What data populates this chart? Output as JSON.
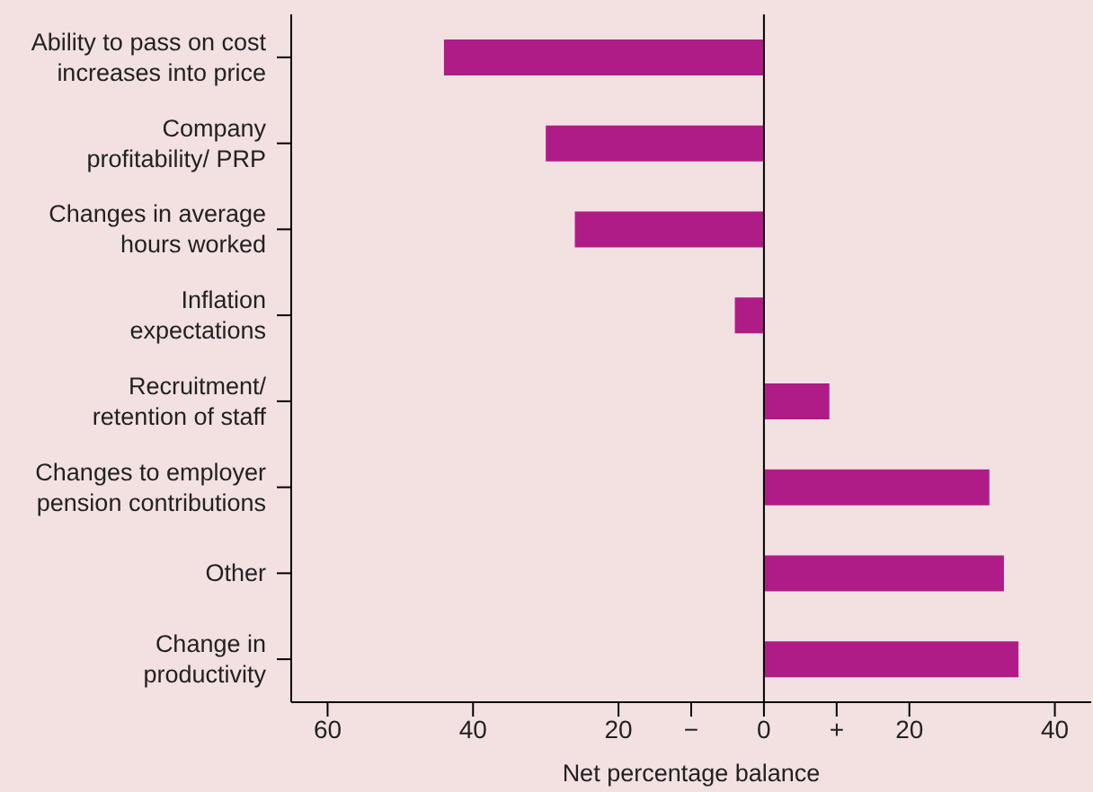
{
  "chart_data": {
    "type": "bar",
    "orientation": "horizontal",
    "xlabel": "Net percentage balance",
    "categories": [
      "Ability to pass on cost increases into price",
      "Company profitability/ PRP",
      "Changes in average hours worked",
      "Inflation expectations",
      "Recruitment/ retention of staff",
      "Changes to employer pension contributions",
      "Other",
      "Change in productivity"
    ],
    "values": [
      -44,
      -30,
      -26,
      -4,
      9,
      31,
      33,
      35
    ],
    "color": "#b01c87",
    "xlim": [
      -65,
      45
    ],
    "xticks": [
      {
        "value": -60,
        "label": "60"
      },
      {
        "value": -40,
        "label": "40"
      },
      {
        "value": -20,
        "label": "20"
      },
      {
        "value": -10,
        "label": "−"
      },
      0,
      {
        "value": 10,
        "label": "+"
      },
      20,
      40
    ],
    "ref_lines": [
      {
        "axis": "x",
        "value": 0,
        "color": "#000000"
      }
    ],
    "grid": false,
    "legend": false
  }
}
